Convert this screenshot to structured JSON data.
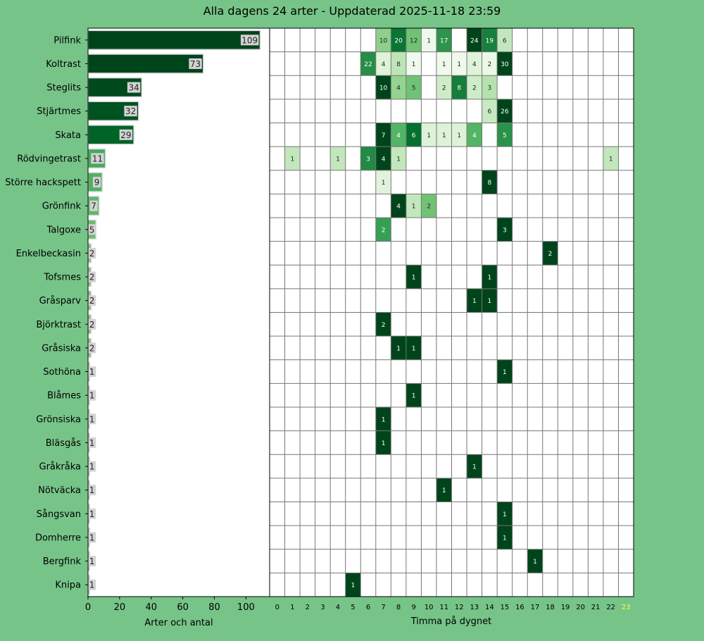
{
  "title": "Alla dagens 24 arter - Uppdaterad 2025-11-18 23:59",
  "chart_data": [
    {
      "type": "bar",
      "orientation": "horizontal",
      "xlabel": "Arter och antal",
      "xlim": [
        0,
        115
      ],
      "xticks": [
        0,
        20,
        40,
        60,
        80,
        100
      ],
      "categories": [
        "Pilfink",
        "Koltrast",
        "Steglits",
        "Stjärtmes",
        "Skata",
        "Rödvingetrast",
        "Större hackspett",
        "Grönfink",
        "Talgoxe",
        "Enkelbeckasin",
        "Tofsmes",
        "Gråsparv",
        "Björktrast",
        "Gråsiska",
        "Sothöna",
        "Blåmes",
        "Grönsiska",
        "Bläsgås",
        "Gråkråka",
        "Nötväcka",
        "Sångsvan",
        "Domherre",
        "Bergfink",
        "Knipa"
      ],
      "values": [
        109,
        73,
        34,
        32,
        29,
        11,
        9,
        7,
        5,
        2,
        2,
        2,
        2,
        2,
        1,
        1,
        1,
        1,
        1,
        1,
        1,
        1,
        1,
        1
      ]
    },
    {
      "type": "heatmap",
      "xlabel": "Timma på dygnet",
      "x": [
        "0",
        "1",
        "2",
        "3",
        "4",
        "5",
        "6",
        "7",
        "8",
        "9",
        "10",
        "11",
        "12",
        "13",
        "14",
        "15",
        "16",
        "17",
        "18",
        "19",
        "20",
        "21",
        "22",
        "23"
      ],
      "highlight_hour": "23",
      "highlight_color": "#e8ff4a",
      "rows": [
        {
          "species": "Pilfink",
          "counts": {
            "7": 10,
            "8": 20,
            "9": 12,
            "10": 1,
            "11": 17,
            "13": 24,
            "14": 19,
            "15": 6
          }
        },
        {
          "species": "Koltrast",
          "counts": {
            "6": 22,
            "7": 4,
            "8": 8,
            "9": 1,
            "11": 1,
            "12": 1,
            "13": 4,
            "14": 2,
            "15": 30
          }
        },
        {
          "species": "Steglits",
          "counts": {
            "7": 10,
            "8": 4,
            "9": 5,
            "11": 2,
            "12": 8,
            "13": 2,
            "14": 3
          }
        },
        {
          "species": "Stjärtmes",
          "counts": {
            "14": 6,
            "15": 26
          }
        },
        {
          "species": "Skata",
          "counts": {
            "7": 7,
            "8": 4,
            "9": 6,
            "10": 1,
            "11": 1,
            "12": 1,
            "13": 4,
            "15": 5
          }
        },
        {
          "species": "Rödvingetrast",
          "counts": {
            "1": 1,
            "4": 1,
            "6": 3,
            "7": 4,
            "8": 1,
            "22": 1
          }
        },
        {
          "species": "Större hackspett",
          "counts": {
            "7": 1,
            "14": 8
          }
        },
        {
          "species": "Grönfink",
          "counts": {
            "8": 4,
            "9": 1,
            "10": 2
          }
        },
        {
          "species": "Talgoxe",
          "counts": {
            "7": 2,
            "15": 3
          }
        },
        {
          "species": "Enkelbeckasin",
          "counts": {
            "18": 2
          }
        },
        {
          "species": "Tofsmes",
          "counts": {
            "9": 1,
            "14": 1
          }
        },
        {
          "species": "Gråsparv",
          "counts": {
            "13": 1,
            "14": 1
          }
        },
        {
          "species": "Björktrast",
          "counts": {
            "7": 2
          }
        },
        {
          "species": "Gråsiska",
          "counts": {
            "8": 1,
            "9": 1
          }
        },
        {
          "species": "Sothöna",
          "counts": {
            "15": 1
          }
        },
        {
          "species": "Blåmes",
          "counts": {
            "9": 1
          }
        },
        {
          "species": "Grönsiska",
          "counts": {
            "7": 1
          }
        },
        {
          "species": "Bläsgås",
          "counts": {
            "7": 1
          }
        },
        {
          "species": "Gråkråka",
          "counts": {
            "13": 1
          }
        },
        {
          "species": "Nötväcka",
          "counts": {
            "11": 1
          }
        },
        {
          "species": "Sångsvan",
          "counts": {
            "15": 1
          }
        },
        {
          "species": "Domherre",
          "counts": {
            "15": 1
          }
        },
        {
          "species": "Bergfink",
          "counts": {
            "17": 1
          }
        },
        {
          "species": "Knipa",
          "counts": {
            "5": 1
          }
        }
      ]
    }
  ]
}
